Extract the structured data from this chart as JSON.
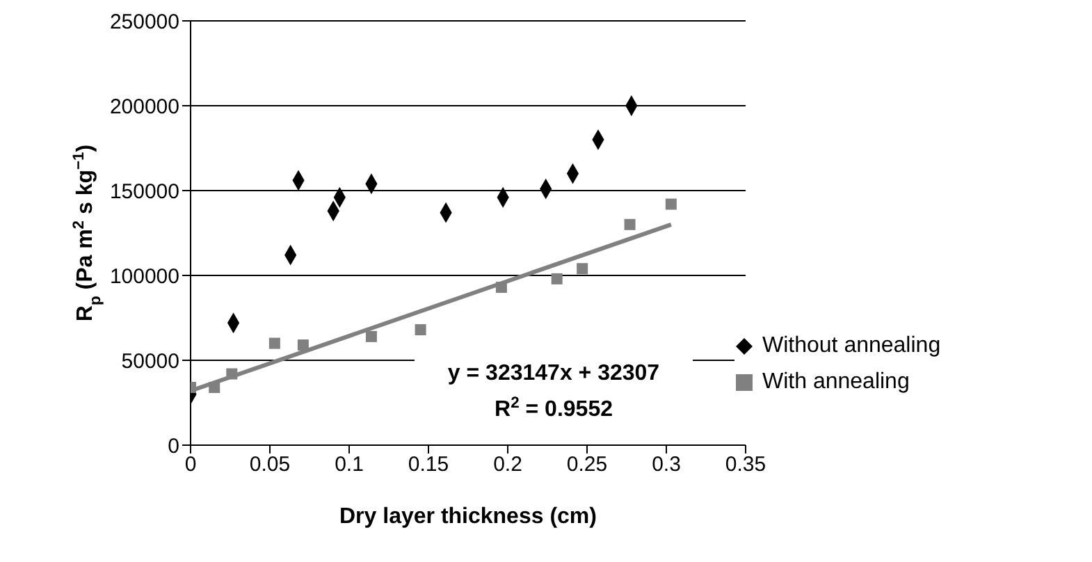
{
  "chart_data": {
    "type": "scatter",
    "xlabel": "Dry layer thickness (cm)",
    "ylabel": "R$_{p}$ (Pa m$^{2}$ s kg$^{−1}$)",
    "series": [
      {
        "name": "Without annealing",
        "color": "#000000",
        "marker": "diamond",
        "x": [
          0,
          0.027,
          0.063,
          0.068,
          0.09,
          0.094,
          0.114,
          0.161,
          0.197,
          0.224,
          0.241,
          0.257,
          0.278
        ],
        "values": [
          30000,
          72000,
          112000,
          156000,
          138000,
          146000,
          154000,
          137000,
          146000,
          151000,
          160000,
          180000,
          200000
        ]
      },
      {
        "name": "With annealing",
        "color": "#808080",
        "marker": "square",
        "x": [
          0,
          0.015,
          0.026,
          0.053,
          0.071,
          0.114,
          0.145,
          0.196,
          0.231,
          0.247,
          0.277,
          0.303
        ],
        "values": [
          34000,
          34000,
          42000,
          60000,
          59000,
          64000,
          68000,
          93000,
          98000,
          104000,
          130000,
          142000
        ]
      },
      {
        "type": "line",
        "color": "#808080",
        "x": [
          0,
          0.303
        ],
        "values": [
          32000,
          130000
        ]
      }
    ],
    "annotations": [
      "y = 323147x + 32307",
      "R$^{2}$ = 0.9552"
    ],
    "xlim": [
      0,
      0.35
    ],
    "xticks": [
      0,
      0.05,
      0.1,
      0.15,
      0.2,
      0.25,
      0.3,
      0.35
    ],
    "ylim": [
      0,
      250000
    ],
    "yticks": [
      0,
      50000,
      100000,
      150000,
      200000,
      250000
    ],
    "grid": "y",
    "legend": "right"
  }
}
